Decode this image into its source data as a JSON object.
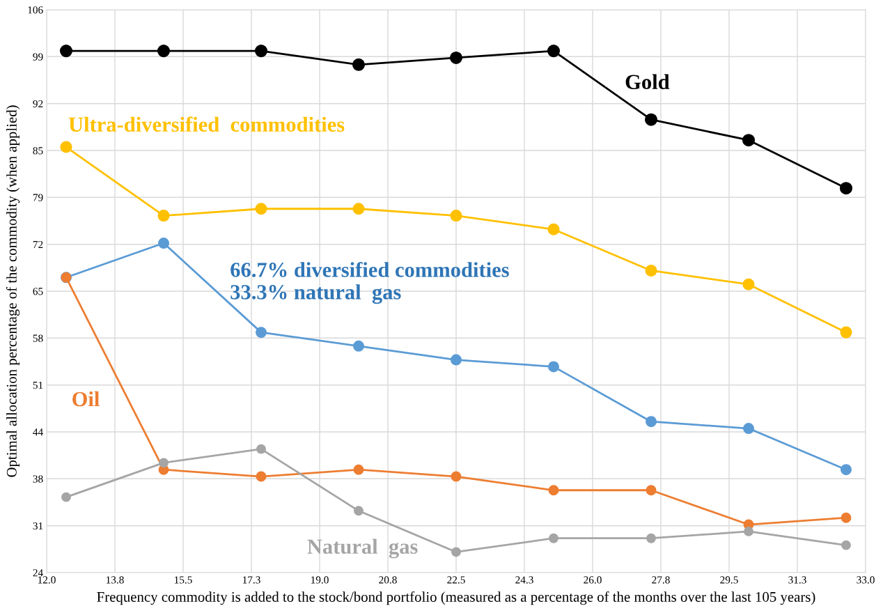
{
  "chart_data": {
    "type": "line",
    "xlabel": "Frequency commodity is added to the stock/bond portfolio (measured as a percentage of the months over the last 105 years)",
    "ylabel": "Optimal allocation percentage of the commodity (when applied)",
    "x": [
      12.5,
      15.0,
      17.5,
      20.0,
      22.5,
      25.0,
      27.5,
      30.0,
      32.5
    ],
    "series": [
      {
        "name": "Gold",
        "color": "#000000",
        "values": [
          100,
          100,
          100,
          98,
          99,
          100,
          90,
          87,
          80
        ]
      },
      {
        "name": "Ultra-diversified  commodities",
        "color": "#ffc000",
        "values": [
          86,
          76,
          77,
          77,
          76,
          74,
          68,
          66,
          59
        ]
      },
      {
        "name": "66.7% diversified commodities\n33.3% natural  gas",
        "color": "#5b9bd5",
        "values": [
          67,
          72,
          59,
          57,
          55,
          54,
          46,
          45,
          39
        ]
      },
      {
        "name": "Oil",
        "color": "#ed7d31",
        "values": [
          67,
          39,
          38,
          39,
          38,
          36,
          36,
          31,
          32
        ]
      },
      {
        "name": "Natural  gas",
        "color": "#a5a5a5",
        "values": [
          35,
          40,
          42,
          33,
          27,
          29,
          29,
          30,
          28
        ]
      }
    ],
    "xlim": [
      12.0,
      33.0
    ],
    "xticks": [
      {
        "value": 12.0,
        "label": "12.0"
      },
      {
        "value": 13.75,
        "label": "13.8"
      },
      {
        "value": 15.5,
        "label": "15.5"
      },
      {
        "value": 17.25,
        "label": "17.3"
      },
      {
        "value": 19.0,
        "label": "19.0"
      },
      {
        "value": 20.75,
        "label": "20.8"
      },
      {
        "value": 22.5,
        "label": "22.5"
      },
      {
        "value": 24.25,
        "label": "24.3"
      },
      {
        "value": 26.0,
        "label": "26.0"
      },
      {
        "value": 27.75,
        "label": "27.8"
      },
      {
        "value": 29.5,
        "label": "29.5"
      },
      {
        "value": 31.25,
        "label": "31.3"
      },
      {
        "value": 33.0,
        "label": "33.0"
      }
    ],
    "ylim": [
      24,
      106
    ],
    "yticks": [
      24,
      {
        "value": 30.83,
        "label": "31"
      },
      {
        "value": 37.67,
        "label": "38"
      },
      {
        "value": 44.5,
        "label": "44"
      },
      {
        "value": 51.33,
        "label": "51"
      },
      {
        "value": 58.17,
        "label": "58"
      },
      65,
      {
        "value": 71.83,
        "label": "72"
      },
      {
        "value": 78.67,
        "label": "79"
      },
      {
        "value": 85.5,
        "label": "85"
      },
      {
        "value": 92.33,
        "label": "92"
      },
      {
        "value": 99.17,
        "label": "99"
      },
      106
    ],
    "grid": true,
    "marker": "circle",
    "line_style": "solid",
    "legend": false
  }
}
